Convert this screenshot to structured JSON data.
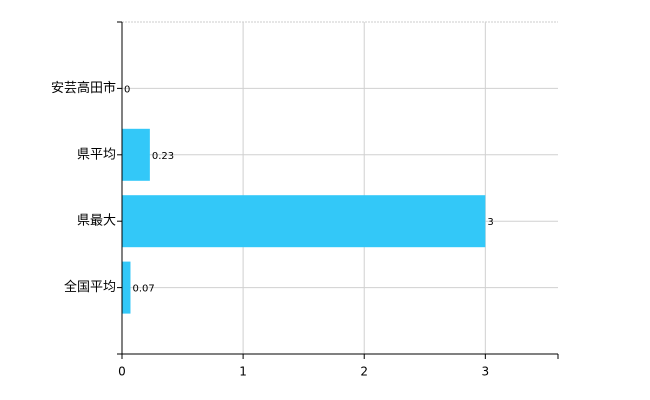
{
  "chart_data": {
    "type": "bar",
    "orientation": "horizontal",
    "categories": [
      "安芸高田市",
      "県平均",
      "県最大",
      "全国平均"
    ],
    "values": [
      0,
      0.23,
      3,
      0.07
    ],
    "color": "#33c8f8",
    "xlim": [
      0,
      3.6
    ],
    "xticks": [
      0,
      1,
      2,
      3
    ],
    "grid": true
  }
}
